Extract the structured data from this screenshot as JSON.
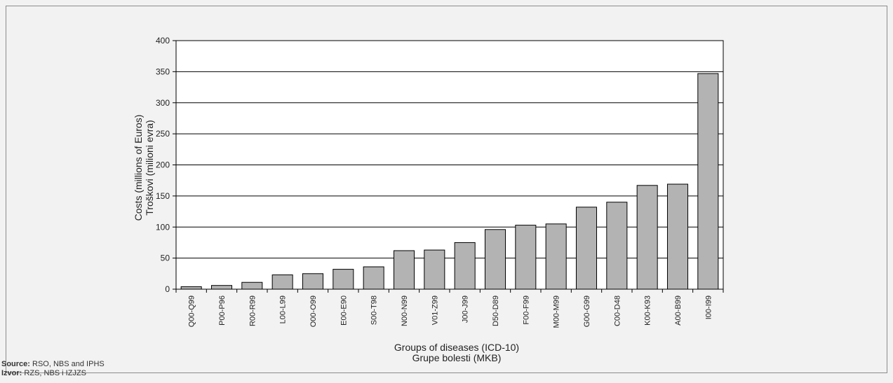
{
  "chart_data": {
    "type": "bar",
    "categories": [
      "Q00-Q99",
      "P00-P96",
      "R00-R99",
      "L00-L99",
      "O00-O99",
      "E00-E90",
      "S00-T98",
      "N00-N99",
      "V01-Z99",
      "J00-J99",
      "D50-D89",
      "F00-F99",
      "M00-M99",
      "G00-G99",
      "C00-D48",
      "K00-K93",
      "A00-B99",
      "I00-I99"
    ],
    "values": [
      4,
      6,
      11,
      23,
      25,
      32,
      36,
      62,
      63,
      75,
      96,
      103,
      105,
      132,
      140,
      167,
      169,
      347
    ],
    "ylim": [
      0,
      400
    ],
    "yticks": [
      0,
      50,
      100,
      150,
      200,
      250,
      300,
      350,
      400
    ],
    "ylabel_line1": "Costs (millions of Euros)",
    "ylabel_line2": "Troškovi (milioni evra)",
    "xlabel_line1": "Groups of diseases (ICD-10)",
    "xlabel_line2": "Grupe bolesti (MKB)",
    "grid": true,
    "bar_color": "#b3b3b3"
  },
  "source": {
    "label_en": "Source:",
    "text_en": " RSO, NBS and IPHS",
    "label_sr": "Izvor:",
    "text_sr": " RZS, NBS i IZJZS"
  }
}
